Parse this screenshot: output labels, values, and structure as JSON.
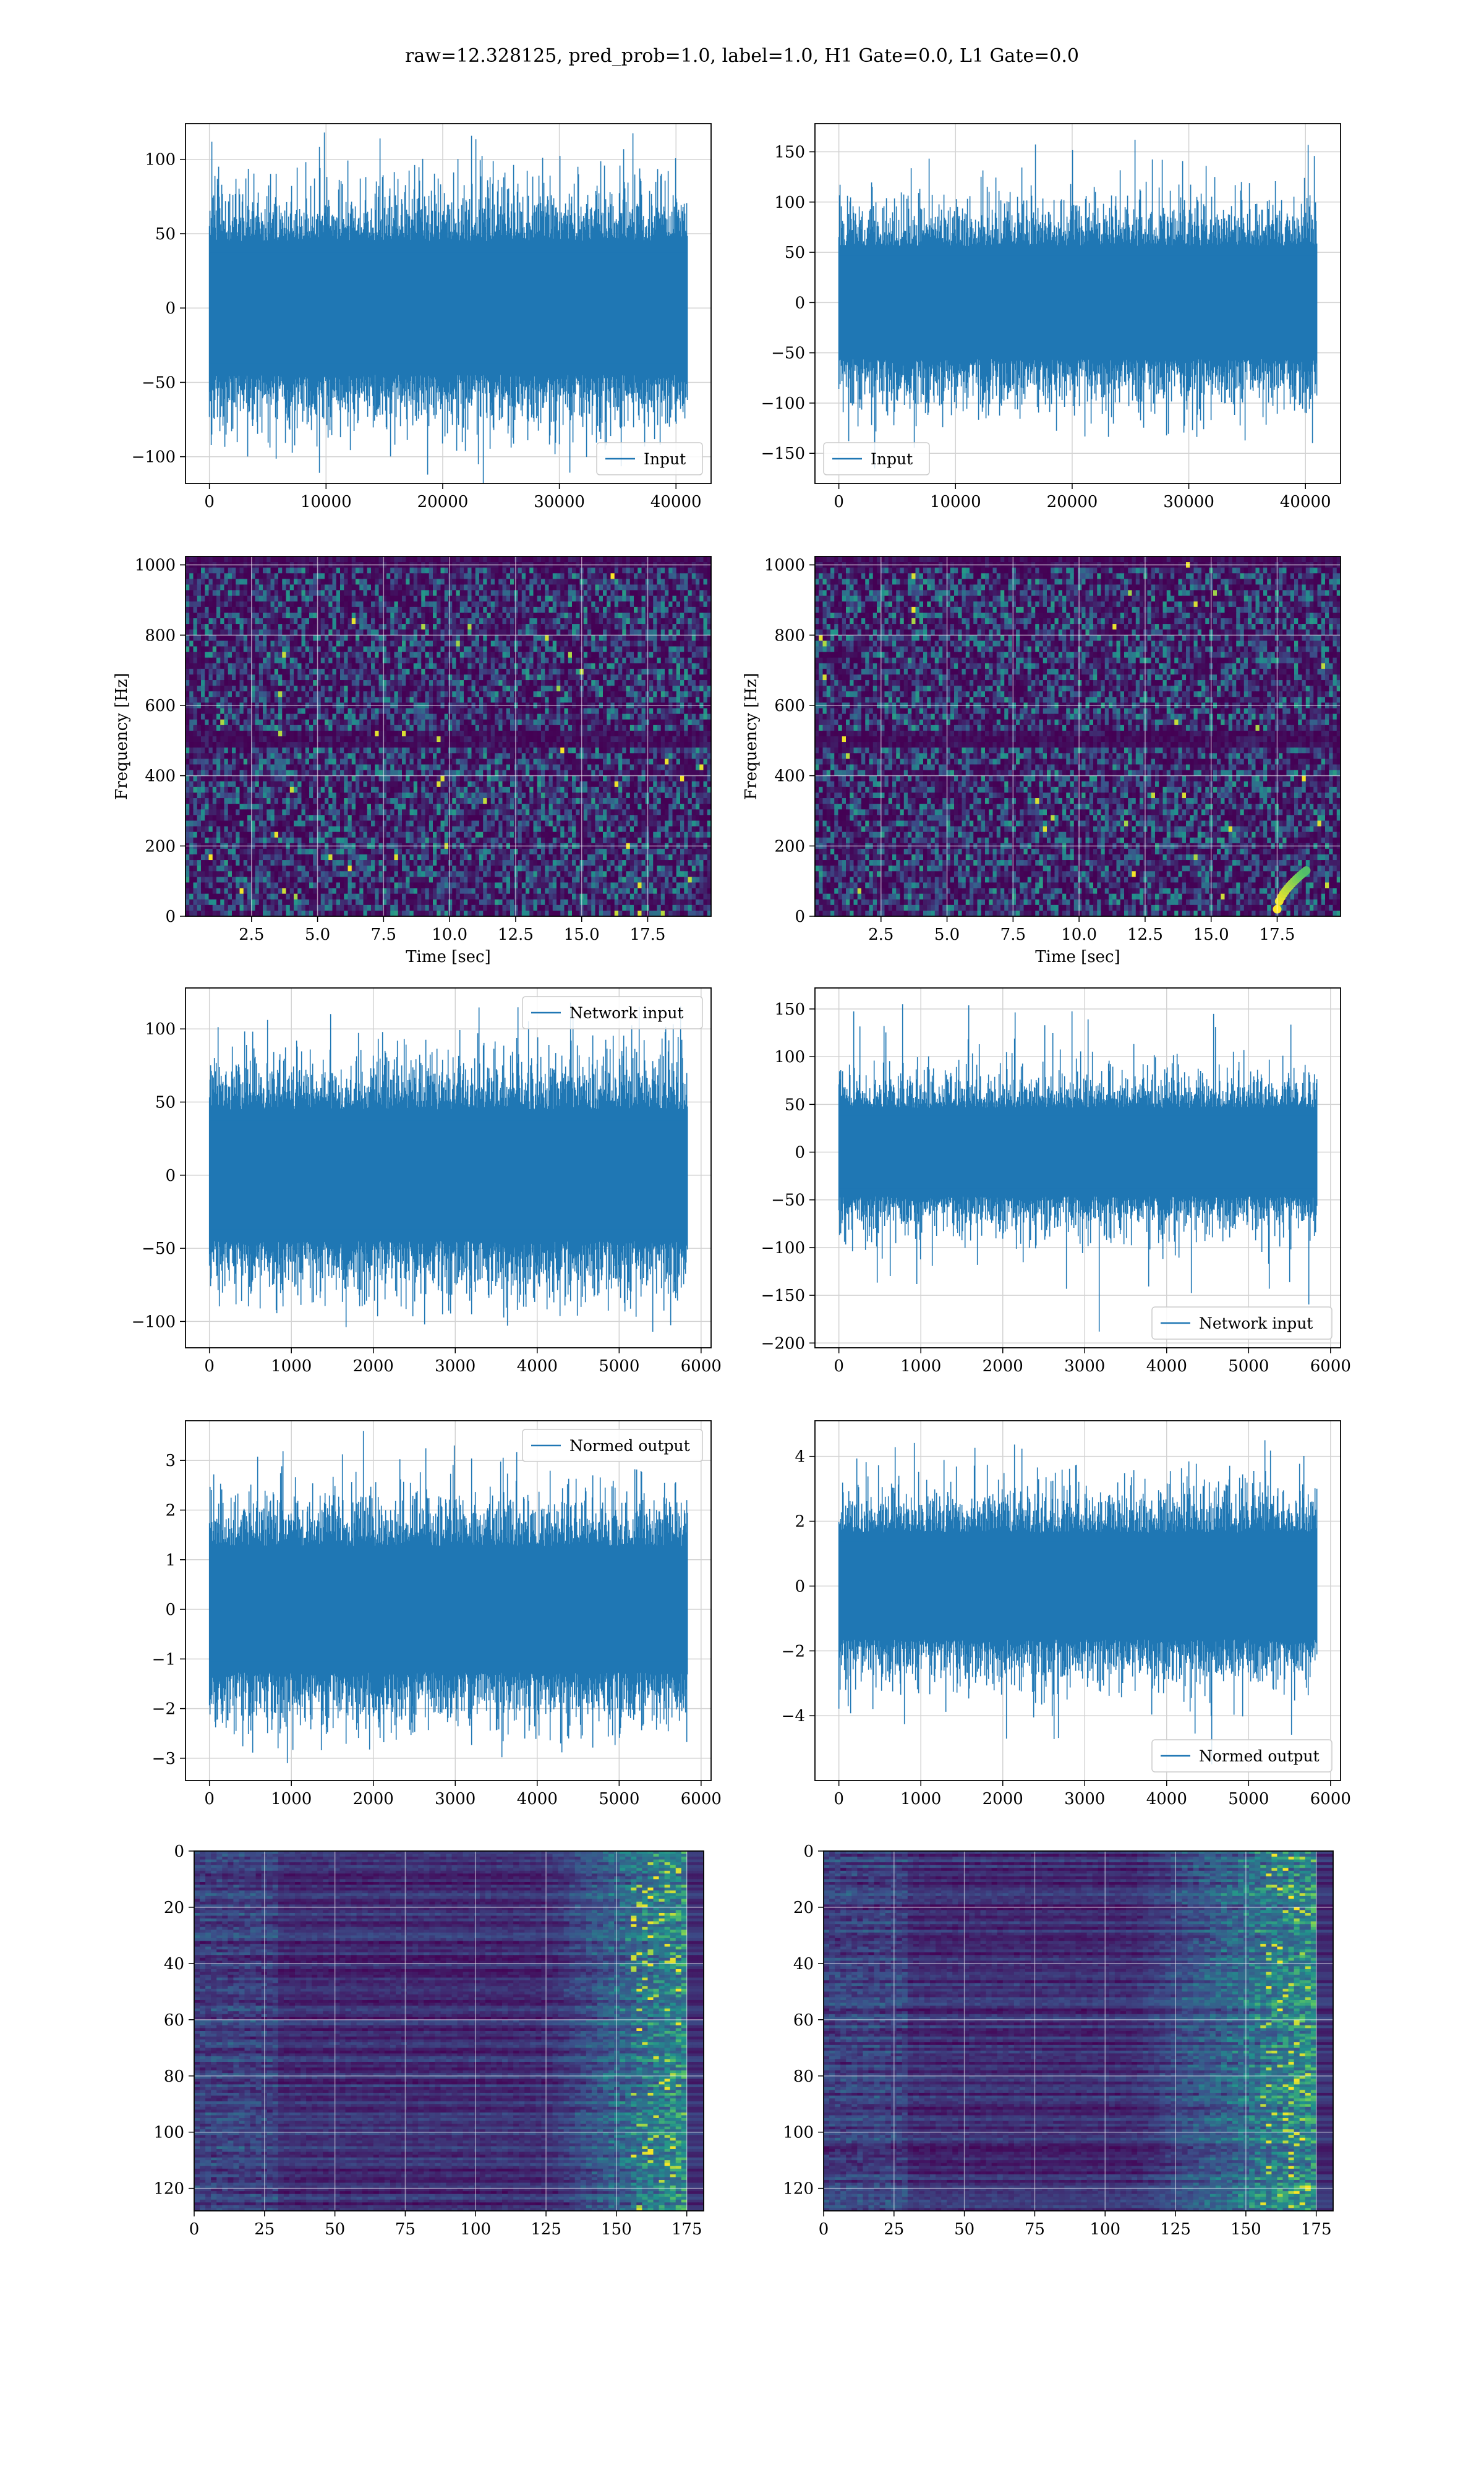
{
  "figure": {
    "suptitle": "raw=12.328125, pred_prob=1.0, label=1.0, H1 Gate=0.0, L1 Gate=0.0"
  },
  "colors": {
    "series": "#1f77b4",
    "grid": "#d3d3d3",
    "viridis_dark": "#440154",
    "viridis_blue": "#3b528b",
    "viridis_teal": "#21918c",
    "viridis_green": "#5ec962",
    "viridis_yellow": "#fde725"
  },
  "chart_data": [
    {
      "id": "h1-input",
      "type": "line",
      "series": [
        {
          "name": "Input",
          "x_range": [
            0,
            40960
          ],
          "amplitude_typical": 60,
          "amplitude_peak": 118,
          "min": -112
        }
      ],
      "xlim": [
        -2048,
        43008
      ],
      "ylim": [
        -118,
        124
      ],
      "xticks": [
        0,
        10000,
        20000,
        30000,
        40000
      ],
      "yticks": [
        -100,
        -50,
        0,
        50,
        100
      ],
      "legend": "lower right",
      "grid": true
    },
    {
      "id": "l1-input",
      "type": "line",
      "series": [
        {
          "name": "Input",
          "x_range": [
            0,
            40960
          ],
          "amplitude_typical": 75,
          "amplitude_peak": 162,
          "min": -165
        }
      ],
      "xlim": [
        -2048,
        43008
      ],
      "ylim": [
        -180,
        178
      ],
      "xticks": [
        0,
        10000,
        20000,
        30000,
        40000
      ],
      "yticks": [
        -150,
        -100,
        -50,
        0,
        50,
        100,
        150
      ],
      "legend": "lower left",
      "grid": true
    },
    {
      "id": "h1-spectrogram",
      "type": "heatmap",
      "xlabel": "Time [sec]",
      "ylabel": "Frequency [Hz]",
      "xlim": [
        0,
        19.9
      ],
      "ylim": [
        0,
        1024
      ],
      "xticks": [
        2.5,
        5.0,
        7.5,
        10.0,
        12.5,
        15.0,
        17.5
      ],
      "yticks": [
        0,
        200,
        400,
        600,
        800,
        1000
      ],
      "colormap": "viridis",
      "grid": true
    },
    {
      "id": "l1-spectrogram",
      "type": "heatmap",
      "xlabel": "Time [sec]",
      "ylabel": "Frequency [Hz]",
      "xlim": [
        0,
        19.9
      ],
      "ylim": [
        0,
        1024
      ],
      "xticks": [
        2.5,
        5.0,
        7.5,
        10.0,
        12.5,
        15.0,
        17.5
      ],
      "yticks": [
        0,
        200,
        400,
        600,
        800,
        1000
      ],
      "colormap": "viridis",
      "grid": true,
      "features": [
        {
          "kind": "chirp",
          "t": [
            17.5,
            18.6
          ],
          "f": [
            20,
            130
          ]
        }
      ]
    },
    {
      "id": "h1-network-input",
      "type": "line",
      "series": [
        {
          "name": "Network input",
          "x_range": [
            0,
            5830
          ],
          "amplitude_typical": 60,
          "amplitude_peak": 118,
          "min": -107
        }
      ],
      "xlim": [
        -292,
        6122
      ],
      "ylim": [
        -118,
        128
      ],
      "xticks": [
        0,
        1000,
        2000,
        3000,
        4000,
        5000,
        6000
      ],
      "yticks": [
        -100,
        -50,
        0,
        50,
        100
      ],
      "legend": "upper right",
      "grid": true
    },
    {
      "id": "l1-network-input",
      "type": "line",
      "series": [
        {
          "name": "Network input",
          "x_range": [
            0,
            5830
          ],
          "amplitude_typical": 62,
          "amplitude_peak": 155,
          "min": -188
        }
      ],
      "xlim": [
        -292,
        6122
      ],
      "ylim": [
        -205,
        172
      ],
      "xticks": [
        0,
        1000,
        2000,
        3000,
        4000,
        5000,
        6000
      ],
      "yticks": [
        -200,
        -150,
        -100,
        -50,
        0,
        50,
        100,
        150
      ],
      "legend": "lower right",
      "grid": true
    },
    {
      "id": "h1-normed-output",
      "type": "line",
      "series": [
        {
          "name": "Normed output",
          "x_range": [
            0,
            5830
          ],
          "amplitude_typical": 1.7,
          "amplitude_peak": 3.3,
          "min": -3.1
        }
      ],
      "xlim": [
        -292,
        6122
      ],
      "ylim": [
        -3.45,
        3.8
      ],
      "xticks": [
        0,
        1000,
        2000,
        3000,
        4000,
        5000,
        6000
      ],
      "yticks": [
        -3,
        -2,
        -1,
        0,
        1,
        2,
        3
      ],
      "legend": "upper right",
      "grid": true
    },
    {
      "id": "l1-normed-output",
      "type": "line",
      "series": [
        {
          "name": "Normed output",
          "x_range": [
            0,
            5830
          ],
          "amplitude_typical": 2.2,
          "amplitude_peak": 4.5,
          "min": -5.5
        }
      ],
      "xlim": [
        -292,
        6122
      ],
      "ylim": [
        -6.0,
        5.1
      ],
      "xticks": [
        0,
        1000,
        2000,
        3000,
        4000,
        5000,
        6000
      ],
      "yticks": [
        -4,
        -2,
        0,
        2,
        4
      ],
      "legend": "lower right",
      "grid": true
    },
    {
      "id": "h1-feature-map",
      "type": "heatmap",
      "xlim": [
        0,
        181
      ],
      "ylim": [
        128,
        0
      ],
      "xticks": [
        0,
        25,
        50,
        75,
        100,
        125,
        150,
        175
      ],
      "yticks": [
        0,
        20,
        40,
        60,
        80,
        100,
        120
      ],
      "colormap": "viridis",
      "grid": true,
      "activity_starts_at_column": 125
    },
    {
      "id": "l1-feature-map",
      "type": "heatmap",
      "xlim": [
        0,
        181
      ],
      "ylim": [
        128,
        0
      ],
      "xticks": [
        0,
        25,
        50,
        75,
        100,
        125,
        150,
        175
      ],
      "yticks": [
        0,
        20,
        40,
        60,
        80,
        100,
        120
      ],
      "colormap": "viridis",
      "grid": true,
      "activity_starts_at_column": 110
    }
  ]
}
